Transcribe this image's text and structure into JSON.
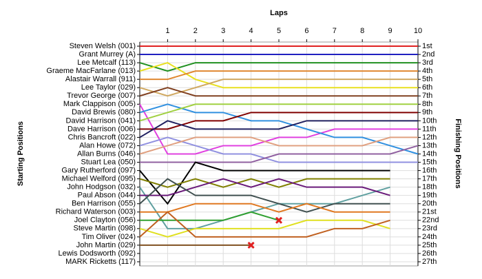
{
  "chart_data": {
    "type": "line",
    "title": "Laps",
    "y_label": "Starting Positions",
    "y2_label": "Finishing Positions",
    "x": [
      0,
      1,
      2,
      3,
      4,
      5,
      6,
      7,
      8,
      9,
      10
    ],
    "xlim": [
      0,
      10
    ],
    "xticks": [
      1,
      2,
      3,
      4,
      5,
      6,
      7,
      8,
      9,
      10
    ],
    "ylim": [
      27.5,
      0.5
    ],
    "yticks": [
      {
        "value": 1,
        "label": "1st"
      },
      {
        "value": 2,
        "label": "2nd"
      },
      {
        "value": 3,
        "label": "3rd"
      },
      {
        "value": 4,
        "label": "4th"
      },
      {
        "value": 5,
        "label": "5th"
      },
      {
        "value": 6,
        "label": "6th"
      },
      {
        "value": 7,
        "label": "7th"
      },
      {
        "value": 8,
        "label": "8th"
      },
      {
        "value": 9,
        "label": "9th"
      },
      {
        "value": 10,
        "label": "10th"
      },
      {
        "value": 11,
        "label": "11th"
      },
      {
        "value": 12,
        "label": "12th"
      },
      {
        "value": 13,
        "label": "13th"
      },
      {
        "value": 14,
        "label": "14th"
      },
      {
        "value": 15,
        "label": "15th"
      },
      {
        "value": 16,
        "label": "16th"
      },
      {
        "value": 17,
        "label": "17th"
      },
      {
        "value": 18,
        "label": "18th"
      },
      {
        "value": 19,
        "label": "19th"
      },
      {
        "value": 20,
        "label": "20th"
      },
      {
        "value": 21,
        "label": "21st"
      },
      {
        "value": 22,
        "label": "22nd"
      },
      {
        "value": 23,
        "label": "23rd"
      },
      {
        "value": 24,
        "label": "24th"
      },
      {
        "value": 25,
        "label": "25th"
      },
      {
        "value": 26,
        "label": "26th"
      },
      {
        "value": 27,
        "label": "27th"
      }
    ],
    "grid": true,
    "series": [
      {
        "name": "Steven Welsh (001)",
        "color": "#e02020",
        "values": [
          1,
          1,
          1,
          1,
          1,
          1,
          1,
          1,
          1,
          1,
          1
        ]
      },
      {
        "name": "Grant Murrey (A)",
        "color": "#2020c0",
        "values": [
          2,
          2,
          2,
          2,
          2,
          2,
          2,
          2,
          2,
          2,
          2
        ]
      },
      {
        "name": "Lee Metcalf (113)",
        "color": "#209020",
        "values": [
          3,
          4,
          3,
          3,
          3,
          3,
          3,
          3,
          3,
          3,
          3
        ]
      },
      {
        "name": "Graeme MacFarlane (013)",
        "color": "#e8e020",
        "values": [
          4,
          3,
          5,
          6,
          6,
          6,
          6,
          6,
          6,
          6,
          6
        ]
      },
      {
        "name": "Alastair Warrall (911)",
        "color": "#e08830",
        "values": [
          5,
          5,
          4,
          4,
          4,
          4,
          4,
          4,
          4,
          4,
          4
        ]
      },
      {
        "name": "Lee Taylor (029)",
        "color": "#d0a860",
        "values": [
          6,
          7,
          6,
          5,
          5,
          5,
          5,
          5,
          5,
          5,
          5
        ]
      },
      {
        "name": "Trevor George (007)",
        "color": "#804020",
        "values": [
          7,
          6,
          7,
          7,
          7,
          7,
          7,
          7,
          7,
          7,
          7
        ]
      },
      {
        "name": "Mark Clappison (005)",
        "color": "#e040e0",
        "values": [
          8,
          14,
          14,
          13,
          13,
          12,
          12,
          11,
          11,
          11,
          11
        ]
      },
      {
        "name": "David Brewis (080)",
        "color": "#3090e0",
        "values": [
          9,
          8,
          9,
          9,
          10,
          10,
          11,
          12,
          12,
          13,
          14
        ]
      },
      {
        "name": "David Harrison (041)",
        "color": "#a0d040",
        "values": [
          10,
          9,
          8,
          8,
          8,
          8,
          8,
          8,
          8,
          8,
          8
        ]
      },
      {
        "name": "Dave Harrison (006)",
        "color": "#800000",
        "values": [
          11,
          11,
          10,
          10,
          9,
          9,
          9,
          9,
          9,
          9,
          9
        ]
      },
      {
        "name": "Chris Bancroft (022)",
        "color": "#202060",
        "values": [
          12,
          10,
          11,
          11,
          11,
          11,
          10,
          10,
          10,
          10,
          10
        ]
      },
      {
        "name": "Alan Howe (072)",
        "color": "#9090e0",
        "values": [
          13,
          12,
          13,
          14,
          14,
          15,
          15,
          15,
          15,
          15,
          15
        ]
      },
      {
        "name": "Allan Burns (046)",
        "color": "#e0a080",
        "values": [
          14,
          13,
          12,
          12,
          12,
          13,
          13,
          13,
          13,
          12,
          12
        ]
      },
      {
        "name": "Stuart Lea (050)",
        "color": "#9060a0",
        "values": [
          15,
          15,
          15,
          15,
          15,
          14,
          14,
          14,
          14,
          14,
          13
        ]
      },
      {
        "name": "Gary Rutherford (097)",
        "color": "#000000",
        "values": [
          16,
          20,
          15,
          16,
          16,
          16,
          16,
          16,
          16,
          16,
          null
        ]
      },
      {
        "name": "Michael Welford (095)",
        "color": "#808000",
        "values": [
          17,
          18,
          17,
          18,
          17,
          18,
          17,
          17,
          17,
          17,
          null
        ]
      },
      {
        "name": "John Hodgson (032)",
        "color": "#60a0a0",
        "values": [
          18,
          23,
          23,
          22,
          21,
          20,
          20,
          20,
          19,
          18,
          null
        ]
      },
      {
        "name": "Paul Abson (044)",
        "color": "#6a1a7a",
        "values": [
          19,
          19,
          18,
          17,
          18,
          17,
          18,
          18,
          18,
          19,
          null
        ]
      },
      {
        "name": "Ben Harrison (055)",
        "color": "#405050",
        "values": [
          20,
          17,
          19,
          19,
          19,
          20,
          21,
          20,
          20,
          20,
          null
        ]
      },
      {
        "name": "Richard Waterson (003)",
        "color": "#e07820",
        "values": [
          21,
          21,
          20,
          20,
          20,
          21,
          20,
          21,
          21,
          21,
          null
        ]
      },
      {
        "name": "Joel Clayton (056)",
        "color": "#30a030",
        "retired": true,
        "values": [
          22,
          22,
          22,
          22,
          21,
          22,
          null,
          null,
          null,
          null,
          null
        ]
      },
      {
        "name": "Steve Martin (098)",
        "color": "#e0e020",
        "values": [
          23,
          24,
          23,
          23,
          23,
          23,
          22,
          22,
          22,
          23,
          null
        ]
      },
      {
        "name": "Tim Oliver (024)",
        "color": "#c06020",
        "values": [
          24,
          21,
          24,
          24,
          24,
          24,
          24,
          23,
          23,
          22,
          null
        ]
      },
      {
        "name": "John Martin (029)",
        "color": "#805020",
        "retired": true,
        "values": [
          25,
          25,
          25,
          25,
          25,
          null,
          null,
          null,
          null,
          null,
          null
        ]
      },
      {
        "name": "Lewis Dodsworth (092)",
        "color": "#808080",
        "values": [
          null,
          null,
          null,
          null,
          null,
          null,
          null,
          null,
          null,
          null,
          null
        ]
      },
      {
        "name": "MARK Ricketts (117)",
        "color": "#808080",
        "values": [
          null,
          null,
          null,
          null,
          null,
          null,
          null,
          null,
          null,
          null,
          null
        ]
      }
    ]
  }
}
